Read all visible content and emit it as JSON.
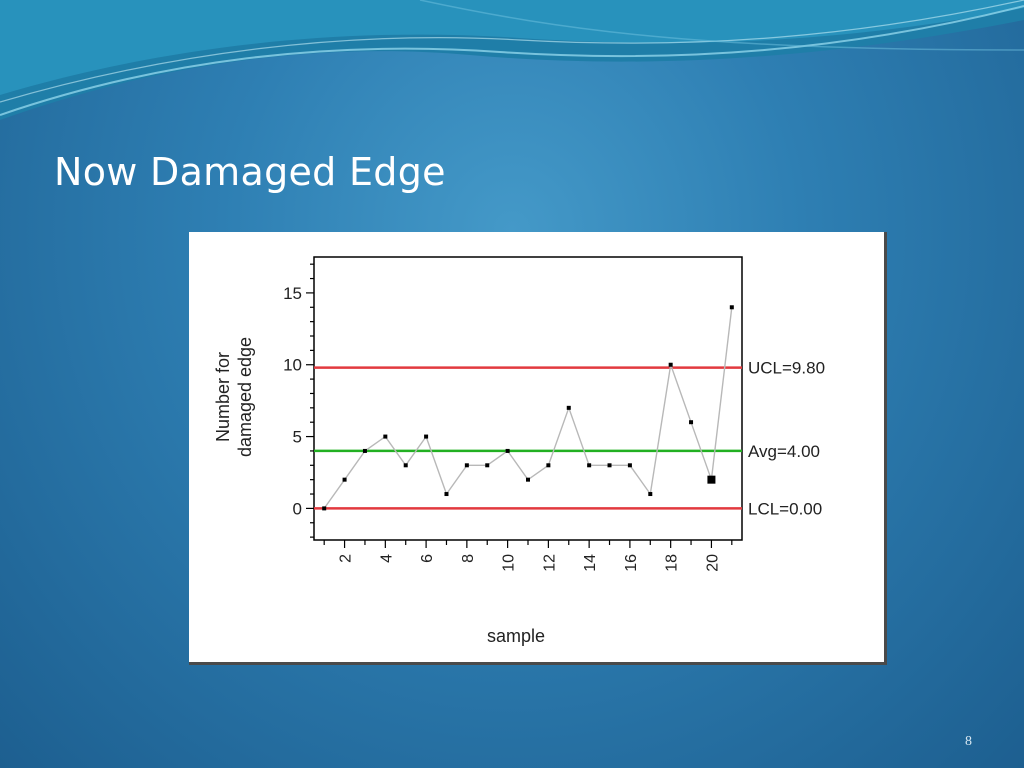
{
  "slide": {
    "title": "Now Damaged Edge",
    "page_number": "8"
  },
  "chart_data": {
    "type": "line",
    "title": "",
    "xlabel": "sample",
    "ylabel": "Number for damaged edge",
    "ylabel_lines": [
      "Number for",
      "damaged edge"
    ],
    "x": [
      1,
      2,
      3,
      4,
      5,
      6,
      7,
      8,
      9,
      10,
      11,
      12,
      13,
      14,
      15,
      16,
      17,
      18,
      19,
      20,
      21
    ],
    "x_ticks": [
      2,
      4,
      6,
      8,
      10,
      12,
      14,
      16,
      18,
      20
    ],
    "y_ticks": [
      0,
      5,
      10,
      15
    ],
    "xlim": [
      0.5,
      21.5
    ],
    "ylim": [
      -2.2,
      17.5
    ],
    "series": [
      {
        "values": [
          0,
          2,
          4,
          5,
          3,
          5,
          1,
          3,
          3,
          4,
          2,
          3,
          7,
          3,
          3,
          3,
          1,
          10,
          6,
          2,
          14
        ]
      }
    ],
    "highlighted_point": {
      "x": 20,
      "y": 2
    },
    "control_lines": [
      {
        "label": "UCL=9.80",
        "value": 9.8,
        "color": "#e2393f"
      },
      {
        "label": "Avg=4.00",
        "value": 4.0,
        "color": "#22b022"
      },
      {
        "label": "LCL=0.00",
        "value": 0.0,
        "color": "#e2393f"
      }
    ],
    "line_color": "#b8b8b8",
    "point_color": "#000000",
    "grid": false
  }
}
